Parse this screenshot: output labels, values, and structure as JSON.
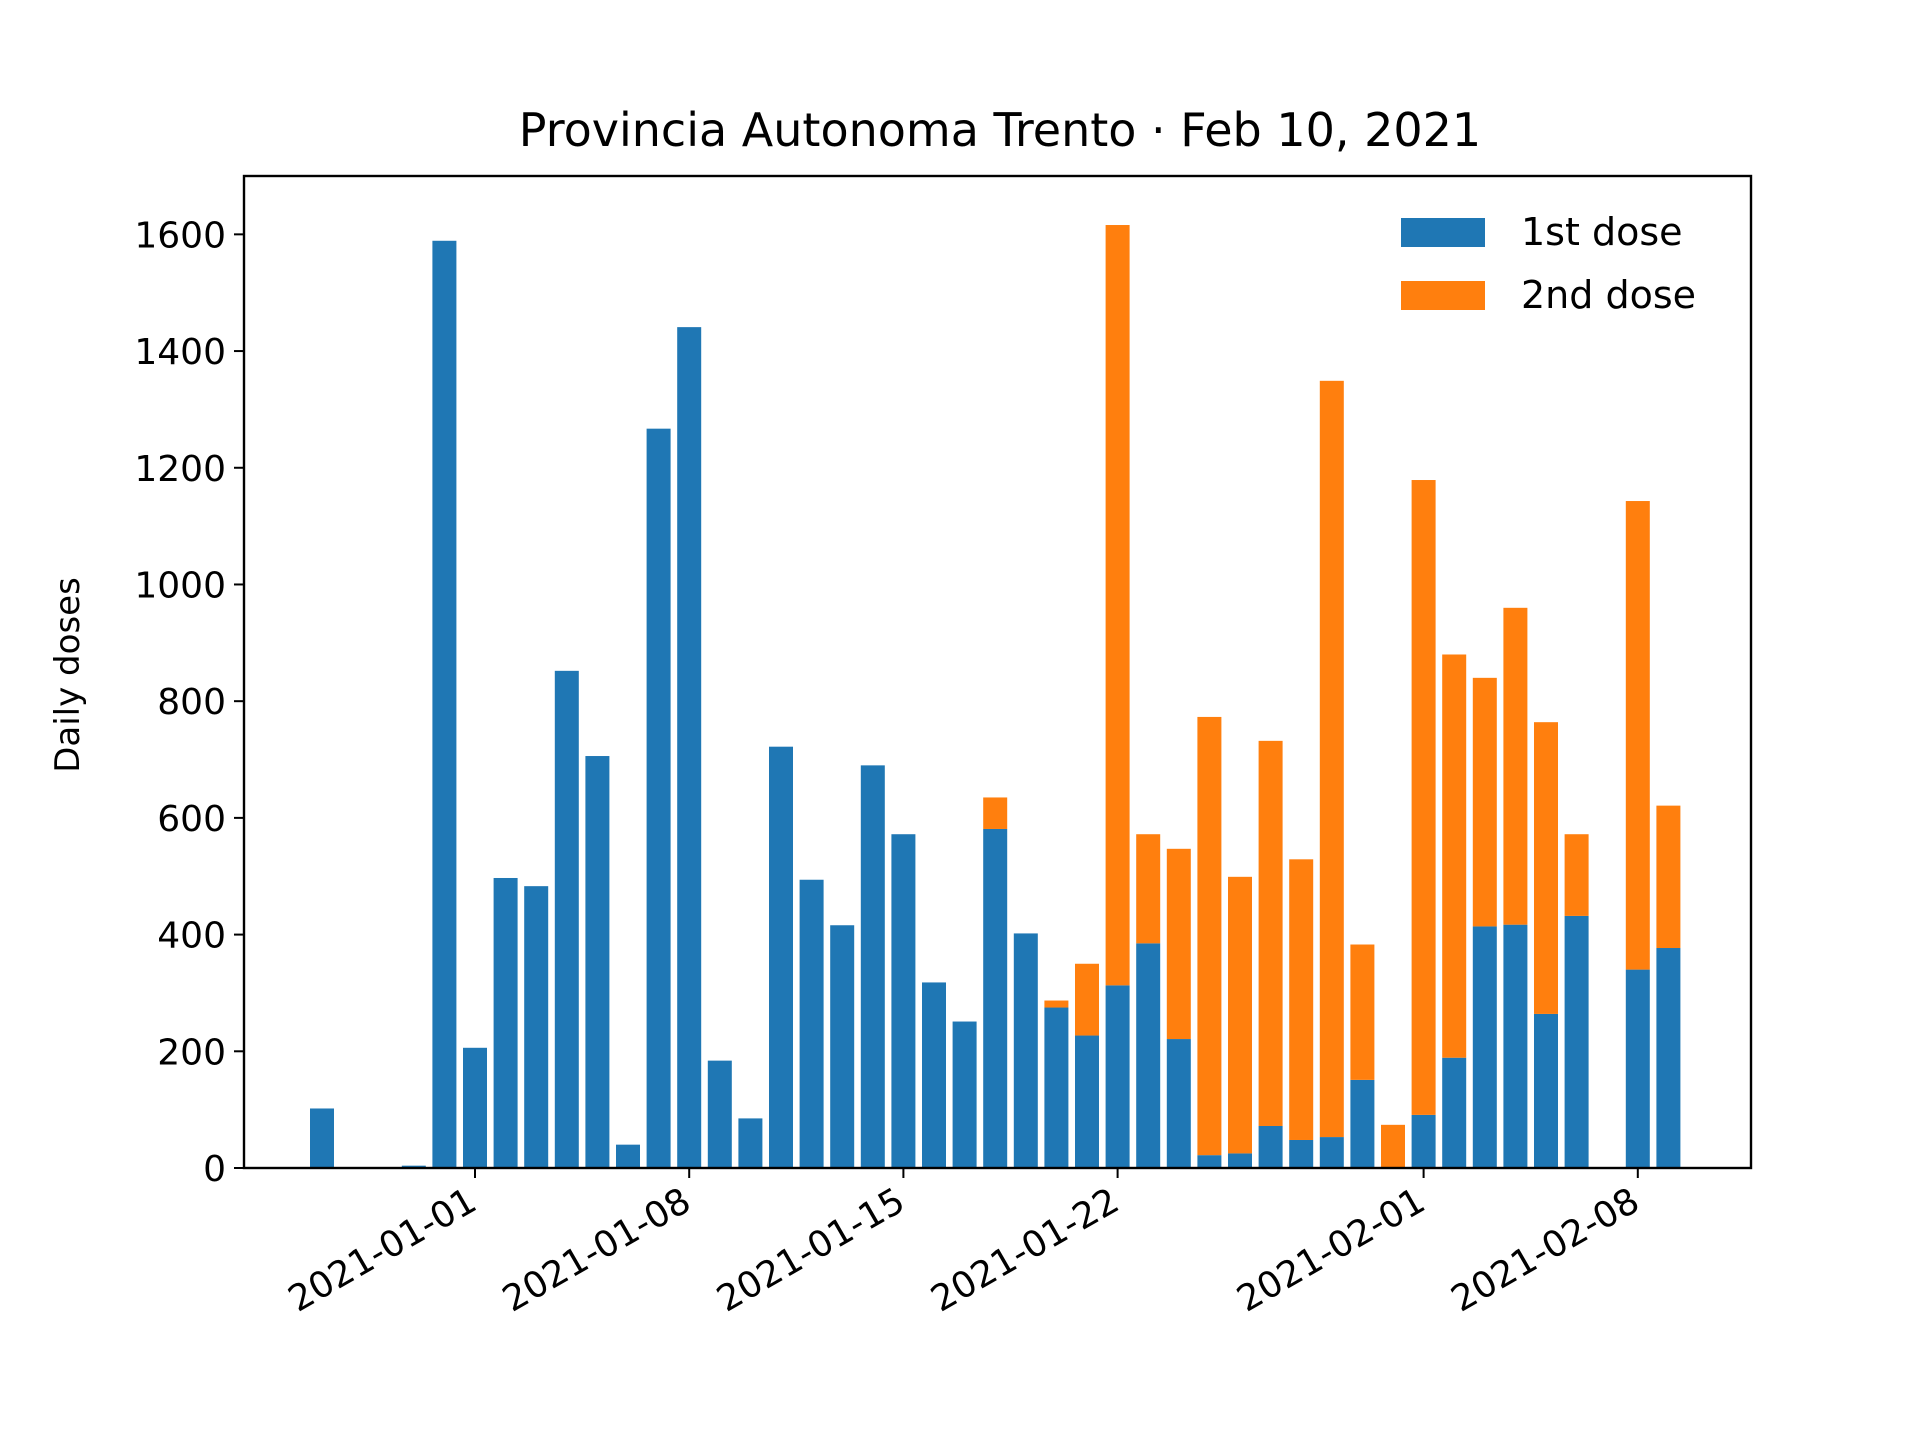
{
  "chart_data": {
    "type": "bar",
    "stacked": true,
    "title": "Provincia Autonoma Trento · Feb 10, 2021",
    "xlabel": "",
    "ylabel": "Daily doses",
    "ylim": [
      0,
      1700
    ],
    "yticks": [
      0,
      200,
      400,
      600,
      800,
      1000,
      1200,
      1400,
      1600
    ],
    "x": [
      "2020-12-27",
      "2020-12-28",
      "2020-12-29",
      "2020-12-30",
      "2020-12-31",
      "2021-01-01",
      "2021-01-02",
      "2021-01-03",
      "2021-01-04",
      "2021-01-05",
      "2021-01-06",
      "2021-01-07",
      "2021-01-08",
      "2021-01-09",
      "2021-01-10",
      "2021-01-11",
      "2021-01-12",
      "2021-01-13",
      "2021-01-14",
      "2021-01-15",
      "2021-01-16",
      "2021-01-17",
      "2021-01-18",
      "2021-01-19",
      "2021-01-20",
      "2021-01-21",
      "2021-01-22",
      "2021-01-23",
      "2021-01-24",
      "2021-01-25",
      "2021-01-26",
      "2021-01-27",
      "2021-01-28",
      "2021-01-29",
      "2021-01-30",
      "2021-01-31",
      "2021-02-01",
      "2021-02-02",
      "2021-02-03",
      "2021-02-04",
      "2021-02-05",
      "2021-02-06",
      "2021-02-07",
      "2021-02-08",
      "2021-02-09"
    ],
    "xticks": [
      "2021-01-01",
      "2021-01-08",
      "2021-01-15",
      "2021-01-22",
      "2021-02-01",
      "2021-02-08"
    ],
    "grid": false,
    "legend_position": "top-right",
    "series": [
      {
        "name": "1st dose",
        "color": "#1f77b4",
        "values": [
          102,
          0,
          0,
          4,
          1589,
          206,
          497,
          483,
          852,
          706,
          40,
          1267,
          1441,
          184,
          85,
          722,
          494,
          416,
          690,
          572,
          318,
          251,
          581,
          402,
          275,
          227,
          313,
          385,
          221,
          22,
          25,
          72,
          48,
          53,
          151,
          0,
          91,
          189,
          414,
          417,
          264,
          432,
          0,
          340,
          377
        ]
      },
      {
        "name": "2nd dose",
        "color": "#ff7f0e",
        "values": [
          0,
          0,
          0,
          0,
          0,
          0,
          0,
          0,
          0,
          0,
          0,
          0,
          0,
          0,
          0,
          0,
          0,
          0,
          0,
          0,
          0,
          0,
          54,
          0,
          12,
          123,
          1303,
          187,
          326,
          751,
          474,
          660,
          481,
          1296,
          232,
          74,
          1088,
          691,
          426,
          543,
          500,
          140,
          0,
          803,
          244
        ]
      }
    ]
  }
}
